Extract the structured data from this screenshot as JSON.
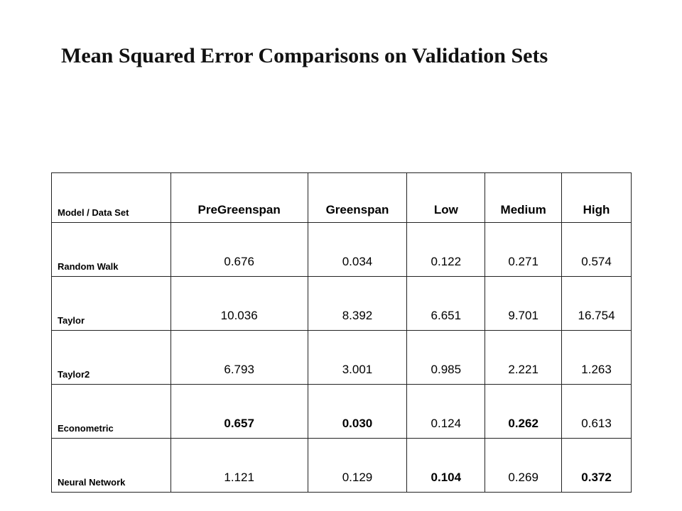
{
  "title": "Mean Squared Error Comparisons on Validation Sets",
  "table": {
    "corner_label": "Model / Data Set",
    "columns": [
      "PreGreenspan",
      "Greenspan",
      "Low",
      "Medium",
      "High"
    ],
    "rows": [
      {
        "model": "Random Walk",
        "values": [
          "0.676",
          "0.034",
          "0.122",
          "0.271",
          "0.574"
        ],
        "bold": [
          false,
          false,
          false,
          false,
          false
        ]
      },
      {
        "model": "Taylor",
        "values": [
          "10.036",
          "8.392",
          "6.651",
          "9.701",
          "16.754"
        ],
        "bold": [
          false,
          false,
          false,
          false,
          false
        ]
      },
      {
        "model": "Taylor2",
        "values": [
          "6.793",
          "3.001",
          "0.985",
          "2.221",
          "1.263"
        ],
        "bold": [
          false,
          false,
          false,
          false,
          false
        ]
      },
      {
        "model": "Econometric",
        "values": [
          "0.657",
          "0.030",
          "0.124",
          "0.262",
          "0.613"
        ],
        "bold": [
          true,
          true,
          false,
          true,
          false
        ]
      },
      {
        "model": "Neural Network",
        "values": [
          "1.121",
          "0.129",
          "0.104",
          "0.269",
          "0.372"
        ],
        "bold": [
          false,
          false,
          true,
          false,
          true
        ]
      }
    ]
  }
}
